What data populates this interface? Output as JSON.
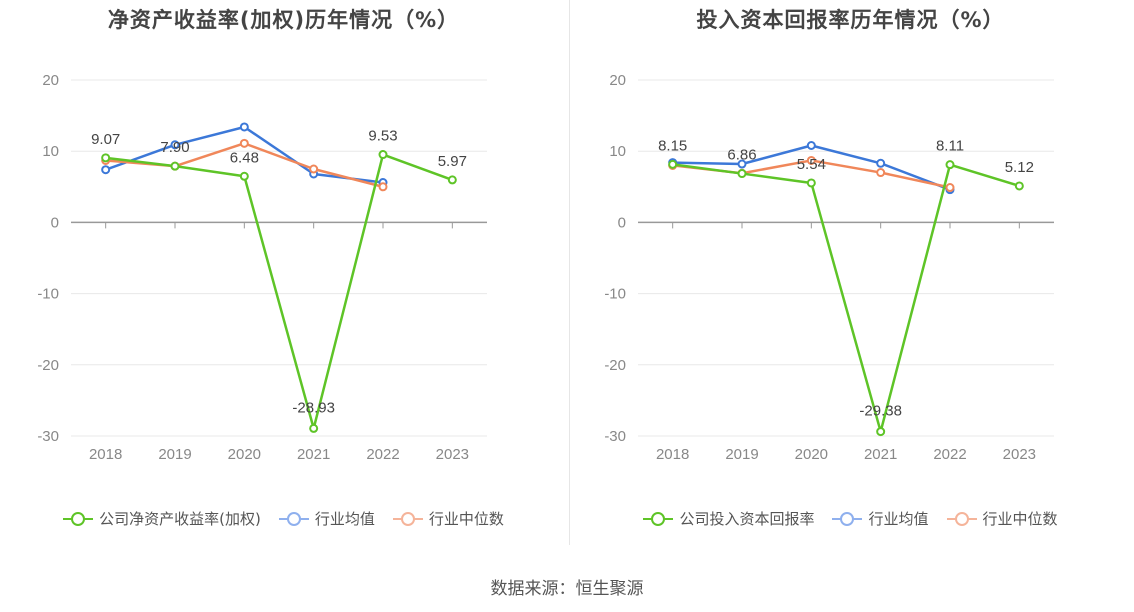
{
  "colors": {
    "company": "#5ec427",
    "industry_avg": "#3c78d8",
    "industry_median": "#f0875a",
    "axis_text": "#888888",
    "grid": "#e8e8e8",
    "label_text": "#444444"
  },
  "source_text": "数据来源：恒生聚源",
  "chart_data": [
    {
      "type": "line",
      "title": "净资产收益率(加权)历年情况（%）",
      "x": [
        "2018",
        "2019",
        "2020",
        "2021",
        "2022",
        "2023"
      ],
      "y_ticks": [
        "20",
        "10",
        "0",
        "-10",
        "-20",
        "-30"
      ],
      "ylim": [
        -30,
        20
      ],
      "grid": true,
      "legend_position": "bottom",
      "series": [
        {
          "key": "company",
          "name": "公司净资产收益率(加权)",
          "values": [
            9.07,
            7.9,
            6.48,
            -28.93,
            9.53,
            5.97
          ],
          "labels": [
            "9.07",
            "7.90",
            "6.48",
            "-28.93",
            "9.53",
            "5.97"
          ]
        },
        {
          "key": "industry_avg",
          "name": "行业均值",
          "values": [
            7.4,
            10.9,
            13.4,
            6.8,
            5.6,
            null
          ]
        },
        {
          "key": "industry_median",
          "name": "行业中位数",
          "values": [
            8.7,
            7.9,
            11.1,
            7.5,
            5.0,
            null
          ]
        }
      ]
    },
    {
      "type": "line",
      "title": "投入资本回报率历年情况（%）",
      "x": [
        "2018",
        "2019",
        "2020",
        "2021",
        "2022",
        "2023"
      ],
      "y_ticks": [
        "20",
        "10",
        "0",
        "-10",
        "-20",
        "-30"
      ],
      "ylim": [
        -30,
        20
      ],
      "grid": true,
      "legend_position": "bottom",
      "series": [
        {
          "key": "company",
          "name": "公司投入资本回报率",
          "values": [
            8.15,
            6.86,
            5.54,
            -29.38,
            8.11,
            5.12
          ],
          "labels": [
            "8.15",
            "6.86",
            "5.54",
            "-29.38",
            "8.11",
            "5.12"
          ]
        },
        {
          "key": "industry_avg",
          "name": "行业均值",
          "values": [
            8.4,
            8.2,
            10.8,
            8.3,
            4.6,
            null
          ]
        },
        {
          "key": "industry_median",
          "name": "行业中位数",
          "values": [
            8.0,
            6.9,
            8.7,
            7.0,
            4.9,
            null
          ]
        }
      ]
    }
  ]
}
